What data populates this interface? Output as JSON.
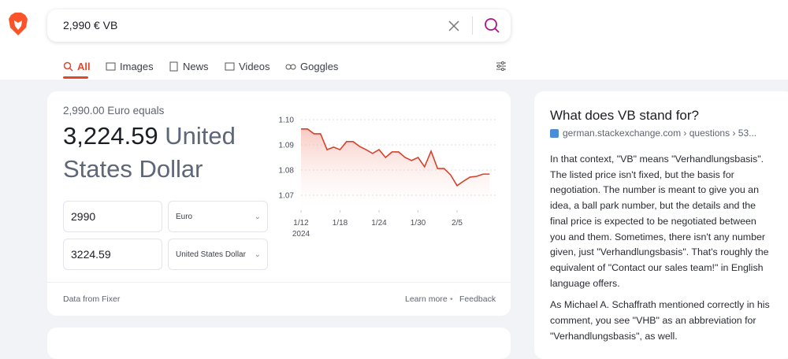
{
  "search": {
    "query": "2,990 € VB"
  },
  "tabs": [
    "All",
    "Images",
    "News",
    "Videos",
    "Goggles"
  ],
  "converter": {
    "equals": "2,990.00 Euro equals",
    "result_amount": "3,224.59",
    "result_currency": "United States Dollar",
    "from_amount": "2990",
    "from_currency": "Euro",
    "to_amount": "3224.59",
    "to_currency": "United States Dollar",
    "source": "Data from Fixer",
    "learn_more": "Learn more",
    "feedback": "Feedback"
  },
  "chart_data": {
    "type": "line",
    "color": "#d9412b",
    "x": [
      0,
      1,
      2,
      3,
      4,
      5,
      6,
      7,
      8,
      9,
      10,
      11,
      12,
      13,
      14,
      15,
      16,
      17,
      18,
      19,
      20,
      21,
      22,
      23,
      24,
      25,
      26,
      27,
      28,
      29
    ],
    "values": [
      1.0963,
      1.0963,
      1.0944,
      1.0944,
      1.0881,
      1.0891,
      1.0881,
      1.0913,
      1.0913,
      1.0894,
      1.0881,
      1.0866,
      1.0881,
      1.085,
      1.0872,
      1.0872,
      1.085,
      1.0838,
      1.085,
      1.0813,
      1.0875,
      1.0806,
      1.0806,
      1.0781,
      1.0738,
      1.0756,
      1.0772,
      1.0775,
      1.0784,
      1.0784
    ],
    "xlim": [
      0,
      29.8
    ],
    "xticks": [
      {
        "value": 0,
        "label": "1/12"
      },
      {
        "value": 6,
        "label": "1/18"
      },
      {
        "value": 12,
        "label": "1/24"
      },
      {
        "value": 18,
        "label": "1/30"
      },
      {
        "value": 24,
        "label": "2/5"
      }
    ],
    "year_label": "2024",
    "ylim": [
      1.065,
      1.102
    ],
    "yticks": [
      {
        "value": 1.1,
        "label": "1.10"
      },
      1.09,
      1.08,
      1.07
    ],
    "grid": true
  },
  "answer": {
    "title": "What does VB stand for?",
    "source": "german.stackexchange.com › questions › 53...",
    "paragraphs": [
      "In that context, \"VB\" means \"Verhandlungsbasis\". The listed price isn't fixed, but the basis for negotiation. The number is meant to give you an idea, a ball park number, but the details and the final price is expected to be negotiated between you and them. Sometimes, there isn't any number given, just \"Verhandlungsbasis\". That's roughly the equivalent of \"Contact our sales team!\" in English language offers.",
      "As Michael A. Schaffrath mentioned correctly in his comment, you see \"VHB\" as an abbreviation for \"Verhandlungsbasis\", as well."
    ]
  }
}
